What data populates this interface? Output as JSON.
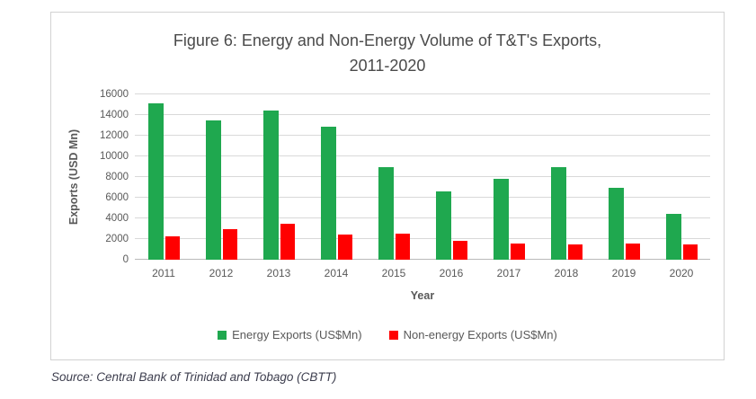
{
  "page": {
    "source_note": "Source: Central Bank of Trinidad and Tobago (CBTT)"
  },
  "chart": {
    "title_line1": "Figure 6: Energy and Non-Energy Volume of T&T's Exports,",
    "title_line2": "2011-2020"
  },
  "chart_data": {
    "type": "bar",
    "title": "Figure 6: Energy and Non-Energy Volume of T&T's Exports, 2011-2020",
    "categories": [
      "2011",
      "2012",
      "2013",
      "2014",
      "2015",
      "2016",
      "2017",
      "2018",
      "2019",
      "2020"
    ],
    "series": [
      {
        "name": "Energy Exports (US$Mn)",
        "color": "#1FA84F",
        "values": [
          15100,
          13500,
          14400,
          12900,
          9000,
          6600,
          7800,
          9000,
          7000,
          4400
        ]
      },
      {
        "name": "Non-energy Exports (US$Mn)",
        "color": "#FF0000",
        "values": [
          2300,
          3000,
          3500,
          2400,
          2500,
          1800,
          1600,
          1500,
          1600,
          1500
        ]
      }
    ],
    "xlabel": "Year",
    "ylabel": "Exports (USD Mn)",
    "ylim": [
      0,
      16000
    ],
    "ytick_step": 2000,
    "grid": true,
    "legend_position": "bottom"
  }
}
